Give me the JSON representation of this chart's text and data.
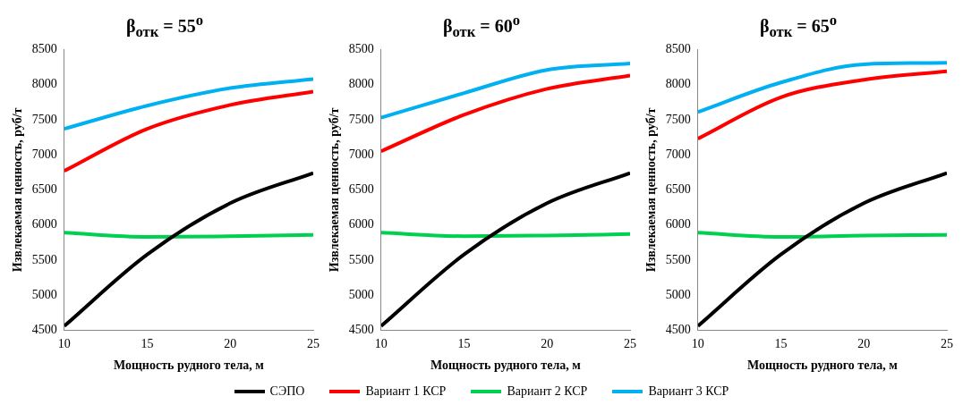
{
  "chart_data": [
    {
      "type": "line",
      "title": "β$_{отк}$ = 55$^{o}$",
      "xlabel": "Мощность рудного тела, м",
      "ylabel": "Извлекаемая ценность, руб/т",
      "x": [
        10,
        15,
        20,
        25
      ],
      "xlim": [
        10,
        25
      ],
      "xticks": [
        10,
        15,
        20,
        25
      ],
      "ylim": [
        4500,
        8500
      ],
      "yticks": [
        4500,
        5000,
        5500,
        6000,
        6500,
        7000,
        7500,
        8000,
        8500
      ],
      "grid": false,
      "legend": "bottom",
      "marker": "none",
      "line_style": "solid",
      "series": [
        {
          "name": "СЭПО",
          "color": "#000000",
          "values": [
            4560,
            5580,
            6310,
            6740
          ]
        },
        {
          "name": "Вариант 1 КСР",
          "color": "#ff0000",
          "values": [
            6770,
            7370,
            7710,
            7900
          ]
        },
        {
          "name": "Вариант 2 КСР",
          "color": "#00d050",
          "values": [
            5890,
            5830,
            5840,
            5860
          ]
        },
        {
          "name": "Вариант 3 КСР",
          "color": "#00b0f0",
          "values": [
            7370,
            7700,
            7950,
            8080
          ]
        }
      ]
    },
    {
      "type": "line",
      "title": "β$_{отк}$ = 60$^{o}$",
      "xlabel": "Мощность рудного тела, м",
      "ylabel": "Извлекаемая ценность, руб/т",
      "x": [
        10,
        15,
        20,
        25
      ],
      "xlim": [
        10,
        25
      ],
      "xticks": [
        10,
        15,
        20,
        25
      ],
      "ylim": [
        4500,
        8500
      ],
      "yticks": [
        4500,
        5000,
        5500,
        6000,
        6500,
        7000,
        7500,
        8000,
        8500
      ],
      "grid": false,
      "marker": "none",
      "line_style": "solid",
      "series": [
        {
          "color": "#000000",
          "values": [
            4560,
            5580,
            6310,
            6740
          ]
        },
        {
          "color": "#ff0000",
          "values": [
            7050,
            7570,
            7940,
            8130
          ]
        },
        {
          "color": "#00d050",
          "values": [
            5890,
            5840,
            5850,
            5870
          ]
        },
        {
          "color": "#00b0f0",
          "values": [
            7530,
            7880,
            8210,
            8300
          ]
        }
      ]
    },
    {
      "type": "line",
      "title": "β$_{отк}$ = 65$^{o}$",
      "xlabel": "Мощность рудного тела, м",
      "ylabel": "Извлекаемая ценность, руб/т",
      "x": [
        10,
        15,
        20,
        25
      ],
      "xlim": [
        10,
        25
      ],
      "xticks": [
        10,
        15,
        20,
        25
      ],
      "ylim": [
        4500,
        8500
      ],
      "yticks": [
        4500,
        5000,
        5500,
        6000,
        6500,
        7000,
        7500,
        8000,
        8500
      ],
      "grid": false,
      "marker": "none",
      "line_style": "solid",
      "series": [
        {
          "color": "#000000",
          "values": [
            4560,
            5580,
            6310,
            6740
          ]
        },
        {
          "color": "#ff0000",
          "values": [
            7230,
            7820,
            8070,
            8190
          ]
        },
        {
          "color": "#00d050",
          "values": [
            5890,
            5830,
            5850,
            5860
          ]
        },
        {
          "color": "#00b0f0",
          "values": [
            7610,
            8030,
            8290,
            8310
          ]
        }
      ]
    }
  ]
}
